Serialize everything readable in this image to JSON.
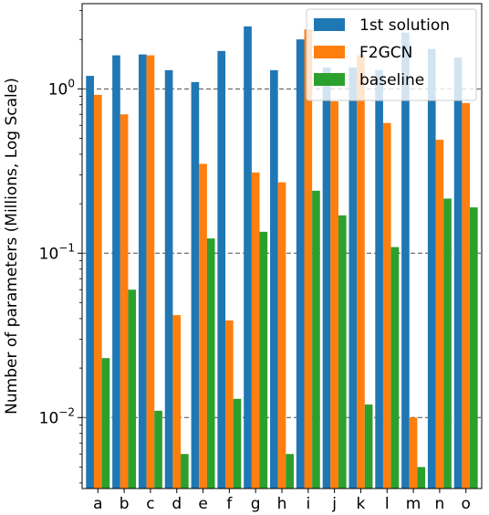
{
  "chart_data": {
    "type": "bar",
    "scale": "log",
    "ylabel": "Number of parameters (Millions, Log Scale)",
    "xlabel": "",
    "title": "",
    "ylim": [
      0.0037,
      3.3
    ],
    "yticks": [
      {
        "value": 0.01,
        "base": "10",
        "exp": "−2"
      },
      {
        "value": 0.1,
        "base": "10",
        "exp": "−1"
      },
      {
        "value": 1,
        "base": "10",
        "exp": "0"
      }
    ],
    "grid": "horizontal dashed at major ticks",
    "legend_position": "top-right",
    "categories": [
      "a",
      "b",
      "c",
      "d",
      "e",
      "f",
      "g",
      "h",
      "i",
      "j",
      "k",
      "l",
      "m",
      "n",
      "o"
    ],
    "series": [
      {
        "name": "1st solution",
        "color": "#1f77b4",
        "values": [
          1.2,
          1.6,
          1.62,
          1.3,
          1.1,
          1.7,
          2.4,
          1.3,
          2.0,
          1.35,
          1.35,
          1.3,
          2.2,
          1.75,
          1.55
        ]
      },
      {
        "name": "F2GCN",
        "color": "#ff7f0e",
        "values": [
          0.92,
          0.7,
          1.6,
          0.042,
          0.35,
          0.039,
          0.31,
          0.27,
          2.3,
          0.84,
          1.6,
          0.62,
          0.01,
          0.49,
          0.82
        ]
      },
      {
        "name": "baseline",
        "color": "#2ca02c",
        "values": [
          0.023,
          0.06,
          0.011,
          0.006,
          0.123,
          0.013,
          0.135,
          0.006,
          0.24,
          0.17,
          0.012,
          0.109,
          0.005,
          0.215,
          0.19
        ]
      }
    ]
  }
}
